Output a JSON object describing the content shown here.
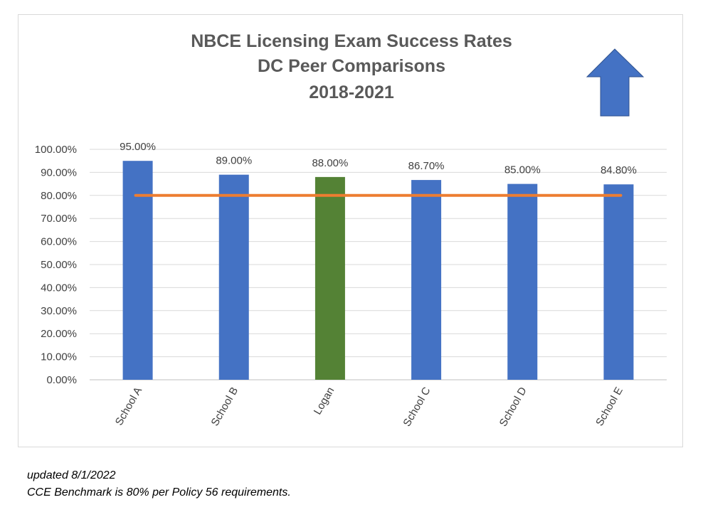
{
  "chart_data": {
    "type": "bar",
    "title_lines": [
      "NBCE Licensing Exam Success Rates",
      "DC Peer Comparisons",
      "2018-2021"
    ],
    "categories": [
      "School A",
      "School B",
      "Logan",
      "School C",
      "School D",
      "School E"
    ],
    "values": [
      95.0,
      89.0,
      88.0,
      86.7,
      85.0,
      84.8
    ],
    "data_labels": [
      "95.00%",
      "89.00%",
      "88.00%",
      "86.70%",
      "85.00%",
      "84.80%"
    ],
    "bar_colors": [
      "#4472C4",
      "#4472C4",
      "#548235",
      "#4472C4",
      "#4472C4",
      "#4472C4"
    ],
    "benchmark": {
      "value": 80,
      "color": "#ED7D31"
    },
    "ylim": [
      0,
      100
    ],
    "yticks": [
      0,
      10,
      20,
      30,
      40,
      50,
      60,
      70,
      80,
      90,
      100
    ],
    "ytick_labels": [
      "0.00%",
      "10.00%",
      "20.00%",
      "30.00%",
      "40.00%",
      "50.00%",
      "60.00%",
      "70.00%",
      "80.00%",
      "90.00%",
      "100.00%"
    ],
    "grid": true,
    "legend": "none",
    "arrow_icon": {
      "name": "up-arrow-icon",
      "color": "#4472C4"
    }
  },
  "notes": {
    "updated": "updated 8/1/2022",
    "benchmark_note": "CCE Benchmark is 80% per Policy 56 requirements."
  }
}
